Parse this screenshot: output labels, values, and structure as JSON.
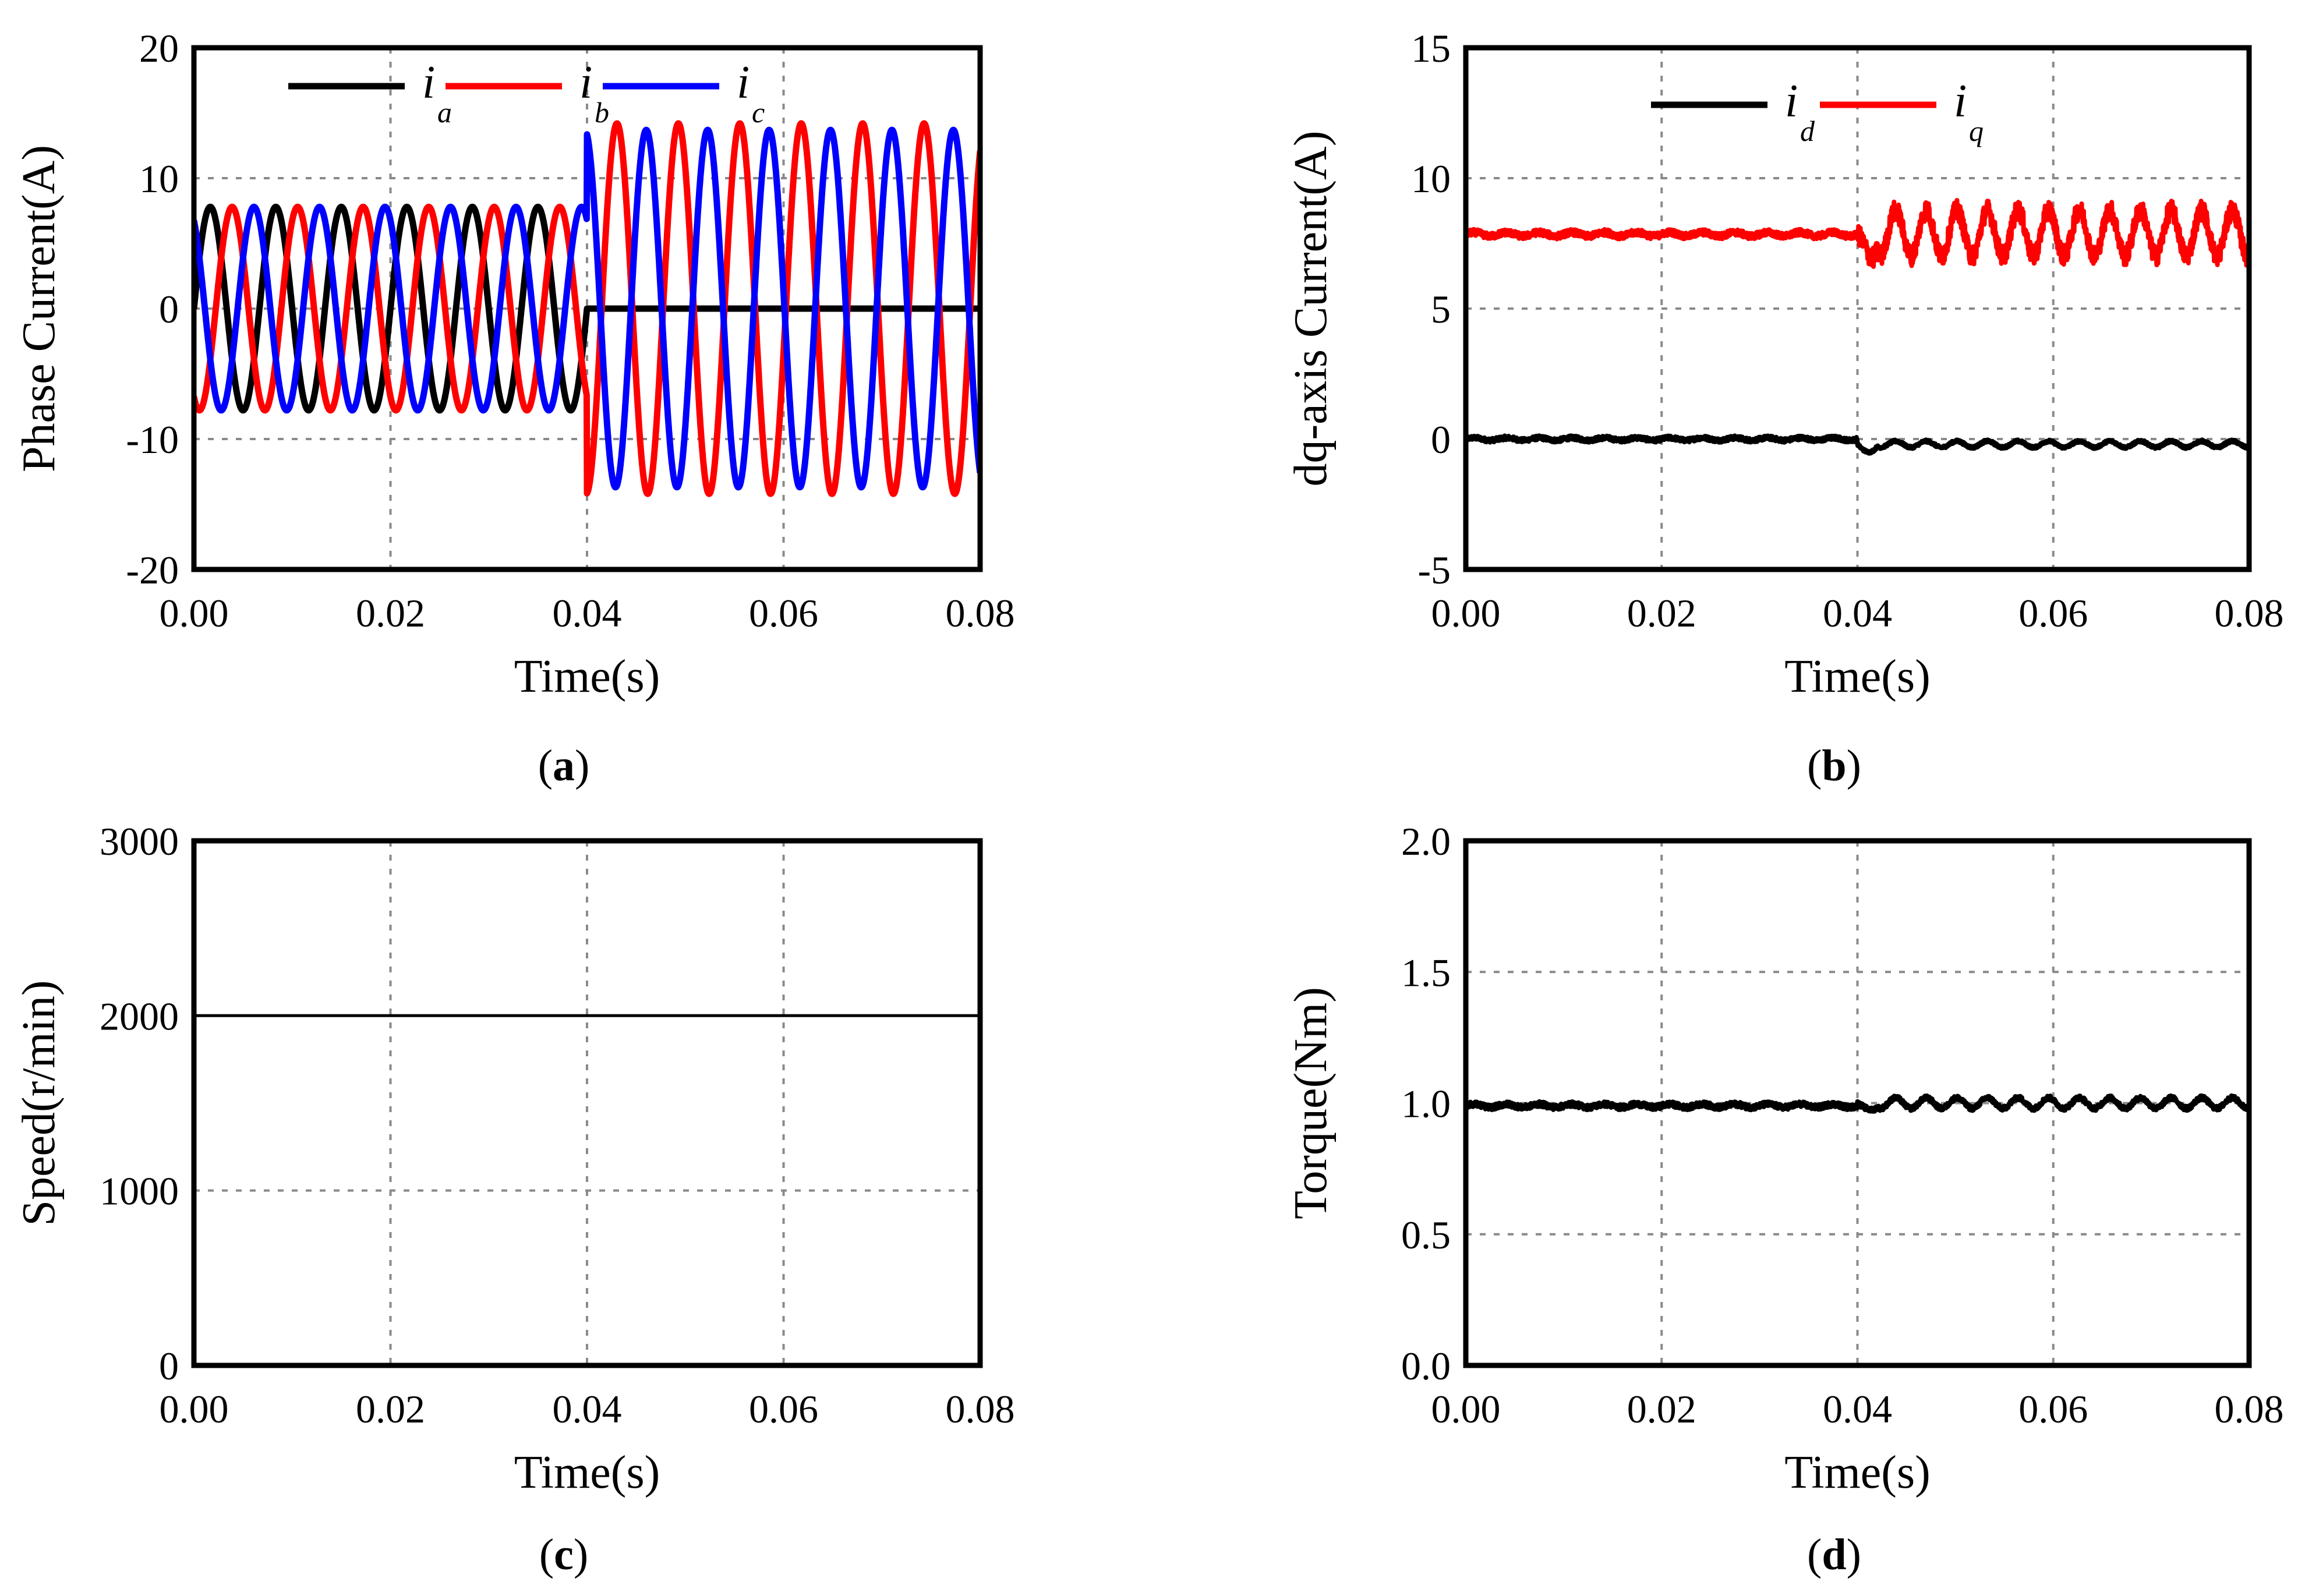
{
  "chart_data": [
    {
      "id": "a",
      "type": "line",
      "caption_letter": "a",
      "caption_open": "(",
      "caption_close": ")",
      "xlabel": "Time(s)",
      "ylabel": "Phase Current(A)",
      "xlim": [
        0,
        0.08
      ],
      "ylim": [
        -20,
        20
      ],
      "xticks": [
        "0.00",
        "0.02",
        "0.04",
        "0.06",
        "0.08"
      ],
      "yticks": [
        "-20",
        "-10",
        "0",
        "10",
        "20"
      ],
      "xtick_values": [
        0,
        0.02,
        0.04,
        0.06,
        0.08
      ],
      "ytick_values": [
        -20,
        -10,
        0,
        10,
        20
      ],
      "series": [
        {
          "name": "i",
          "sub": "a",
          "color": "#000000",
          "kind": "phase",
          "amp_before": 7.8,
          "amp_after": 0,
          "freq_before": 150,
          "freq_after": 150,
          "phase_deg": 0
        },
        {
          "name": "i",
          "sub": "b",
          "color": "#ff0000",
          "kind": "phase",
          "amp_before": 7.8,
          "amp_after": 14.2,
          "freq_before": 150,
          "freq_after": 150,
          "phase_deg": -120
        },
        {
          "name": "i",
          "sub": "c",
          "color": "#0000ff",
          "kind": "phase",
          "amp_before": 7.8,
          "amp_after": 13.7,
          "freq_before": 150,
          "freq_after": 150,
          "phase_deg": 120
        }
      ],
      "event_time": 0.04
    },
    {
      "id": "b",
      "type": "line",
      "caption_letter": "b",
      "caption_open": "(",
      "caption_close": ")",
      "xlabel": "Time(s)",
      "ylabel": "dq-axis Current(A)",
      "xlim": [
        0,
        0.08
      ],
      "ylim": [
        -5,
        15
      ],
      "xticks": [
        "0.00",
        "0.02",
        "0.04",
        "0.06",
        "0.08"
      ],
      "yticks": [
        "-5",
        "0",
        "5",
        "10",
        "15"
      ],
      "xtick_values": [
        0,
        0.02,
        0.04,
        0.06,
        0.08
      ],
      "ytick_values": [
        -5,
        0,
        5,
        10,
        15
      ],
      "series": [
        {
          "name": "i",
          "sub": "d",
          "color": "#000000",
          "kind": "steady",
          "mean_before": 0.0,
          "mean_after": -0.2,
          "ripple_before": 0.08,
          "ripple_after": 0.15,
          "dip_at_event": -0.4
        },
        {
          "name": "i",
          "sub": "q",
          "color": "#ff0000",
          "kind": "steady",
          "mean_before": 7.85,
          "mean_after": 7.9,
          "ripple_before": 0.12,
          "ripple_after": 1.1,
          "dip_at_event": -1.5
        }
      ],
      "event_time": 0.04
    },
    {
      "id": "c",
      "type": "line",
      "caption_letter": "c",
      "caption_open": "(",
      "caption_close": ")",
      "xlabel": "Time(s)",
      "ylabel": "Speed(r/min)",
      "xlim": [
        0,
        0.08
      ],
      "ylim": [
        0,
        3000
      ],
      "xticks": [
        "0.00",
        "0.02",
        "0.04",
        "0.06",
        "0.08"
      ],
      "yticks": [
        "0",
        "1000",
        "2000",
        "3000"
      ],
      "xtick_values": [
        0,
        0.02,
        0.04,
        0.06,
        0.08
      ],
      "ytick_values": [
        0,
        1000,
        2000,
        3000
      ],
      "series": [
        {
          "name": "speed",
          "color": "#000000",
          "kind": "steady",
          "mean_before": 2000,
          "mean_after": 2000,
          "ripple_before": 0,
          "ripple_after": 0,
          "dip_at_event": 0
        }
      ],
      "event_time": 0.04
    },
    {
      "id": "d",
      "type": "line",
      "caption_letter": "d",
      "caption_open": "(",
      "caption_close": ")",
      "xlabel": "Time(s)",
      "ylabel": "Torque(Nm)",
      "xlim": [
        0,
        0.08
      ],
      "ylim": [
        0,
        2.0
      ],
      "xticks": [
        "0.00",
        "0.02",
        "0.04",
        "0.06",
        "0.08"
      ],
      "yticks": [
        "0.0",
        "0.5",
        "1.0",
        "1.5",
        "2.0"
      ],
      "xtick_values": [
        0,
        0.02,
        0.04,
        0.06,
        0.08
      ],
      "ytick_values": [
        0,
        0.5,
        1.0,
        1.5,
        2.0
      ],
      "series": [
        {
          "name": "torque",
          "color": "#000000",
          "kind": "steady",
          "mean_before": 0.99,
          "mean_after": 1.0,
          "ripple_before": 0.01,
          "ripple_after": 0.025,
          "dip_at_event": -0.04
        }
      ],
      "event_time": 0.04
    }
  ]
}
